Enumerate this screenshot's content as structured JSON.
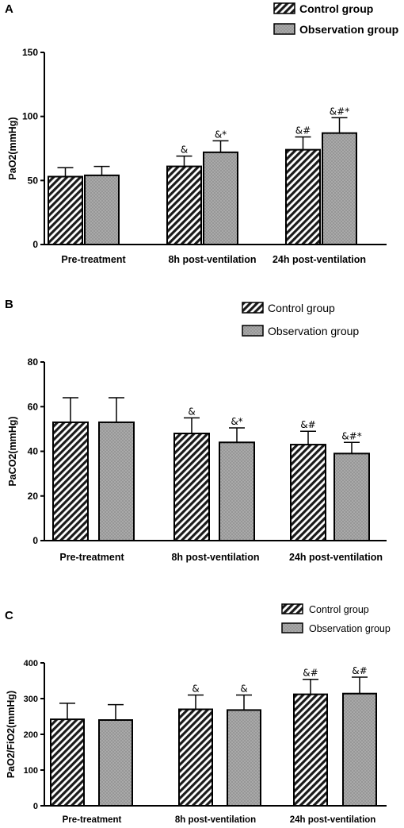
{
  "chart_data": [
    {
      "panel": "A",
      "type": "bar",
      "ylabel": "PaO2(mmHg)",
      "categories": [
        "Pre-treatment",
        "8h post-ventilation",
        "24h post-ventilation"
      ],
      "series": [
        {
          "name": "Control group",
          "values": [
            53,
            61,
            74
          ],
          "errors": [
            7,
            8,
            10
          ]
        },
        {
          "name": "Observation group",
          "values": [
            54,
            72,
            87
          ],
          "errors": [
            7,
            9,
            12
          ]
        }
      ],
      "annotations": [
        [
          "",
          "&",
          "&#"
        ],
        [
          "",
          "&*",
          "&#*"
        ]
      ],
      "ylim": [
        0,
        150
      ],
      "yticks": [
        0,
        50,
        100,
        150
      ],
      "legend_position": "top-right",
      "grid": false
    },
    {
      "panel": "B",
      "type": "bar",
      "ylabel": "PaCO2(mmHg)",
      "categories": [
        "Pre-treatment",
        "8h post-ventilation",
        "24h post-ventilation"
      ],
      "series": [
        {
          "name": "Control group",
          "values": [
            53,
            48,
            43
          ],
          "errors": [
            11,
            7,
            6
          ]
        },
        {
          "name": "Observation group",
          "values": [
            53,
            44,
            39
          ],
          "errors": [
            11,
            6.5,
            5
          ]
        }
      ],
      "annotations": [
        [
          "",
          "&",
          "&#"
        ],
        [
          "",
          "&*",
          "&#*"
        ]
      ],
      "ylim": [
        0,
        80
      ],
      "yticks": [
        0,
        20,
        40,
        60,
        80
      ],
      "legend_position": "top-right",
      "grid": false
    },
    {
      "panel": "C",
      "type": "bar",
      "ylabel": "PaO2/FiO2(mmHg)",
      "categories": [
        "Pre-treatment",
        "8h post-ventilation",
        "24h post-ventilation"
      ],
      "series": [
        {
          "name": "Control group",
          "values": [
            242,
            270,
            312
          ],
          "errors": [
            45,
            40,
            42
          ]
        },
        {
          "name": "Observation group",
          "values": [
            240,
            268,
            314
          ],
          "errors": [
            43,
            42,
            46
          ]
        }
      ],
      "annotations": [
        [
          "",
          "&",
          "&#"
        ],
        [
          "",
          "&",
          "&#"
        ]
      ],
      "ylim": [
        0,
        400
      ],
      "yticks": [
        0,
        100,
        200,
        300,
        400
      ],
      "legend_position": "top-right",
      "grid": false
    }
  ]
}
